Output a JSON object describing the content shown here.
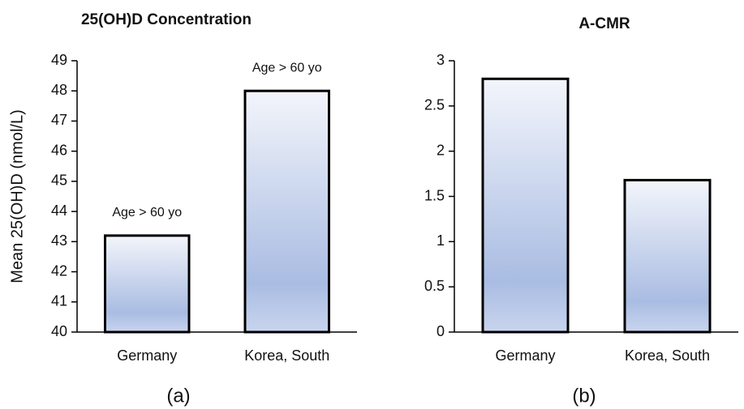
{
  "chart_data": [
    {
      "type": "bar",
      "title": "25(OH)D Concentration",
      "y_label": "Mean 25(OH)D (nmol/L)",
      "categories": [
        "Germany",
        "Korea, South"
      ],
      "values": [
        43.2,
        48.0
      ],
      "annotations": [
        "Age > 60 yo",
        "Age > 60 yo"
      ],
      "ylim": [
        40,
        49
      ],
      "yticks": [
        40,
        41,
        42,
        43,
        44,
        45,
        46,
        47,
        48,
        49
      ],
      "caption": "(a)"
    },
    {
      "type": "bar",
      "title": "A-CMR",
      "categories": [
        "Germany",
        "Korea, South"
      ],
      "values": [
        2.8,
        1.68
      ],
      "ylim": [
        0,
        3
      ],
      "yticks": [
        0,
        0.5,
        1,
        1.5,
        2,
        2.5,
        3
      ],
      "caption": "(b)"
    }
  ]
}
